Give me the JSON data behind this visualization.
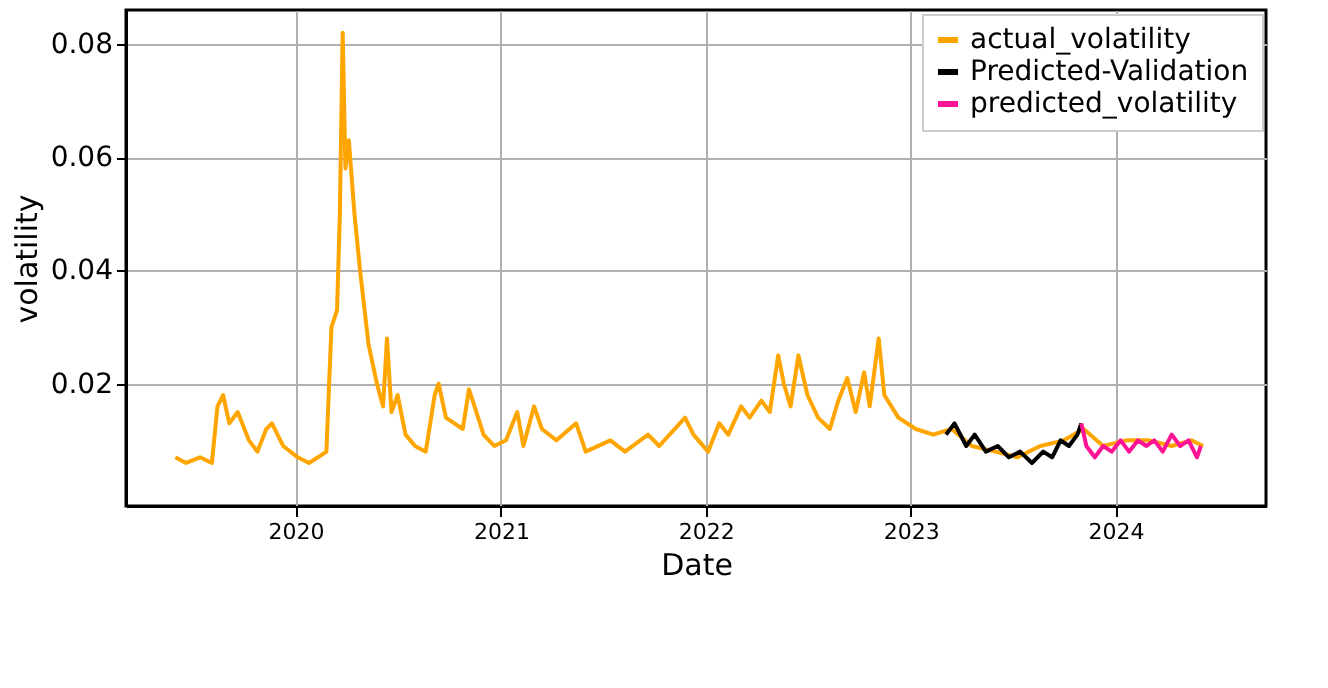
{
  "chart_data": {
    "type": "line",
    "xlabel": "Date",
    "ylabel": "volatility",
    "xlim": [
      "2019-03-05",
      "2024-09-25"
    ],
    "ylim": [
      -0.0016,
      0.086
    ],
    "xticks": [
      {
        "value": "2020-01-01",
        "label": "2020"
      },
      {
        "value": "2021-01-01",
        "label": "2021"
      },
      {
        "value": "2022-01-01",
        "label": "2022"
      },
      {
        "value": "2023-01-01",
        "label": "2023"
      },
      {
        "value": "2024-01-01",
        "label": "2024"
      }
    ],
    "yticks": [
      0.02,
      0.04,
      0.06,
      0.08
    ],
    "grid": true,
    "legend": "top right",
    "marker": "none",
    "line_style": "solid",
    "series": [
      {
        "name": "actual_volatility",
        "color": "#ffa500",
        "x": [
          "2019-06-01",
          "2019-06-20",
          "2019-07-15",
          "2019-08-05",
          "2019-08-15",
          "2019-08-25",
          "2019-09-05",
          "2019-09-20",
          "2019-10-10",
          "2019-10-25",
          "2019-11-10",
          "2019-11-20",
          "2019-12-10",
          "2020-01-05",
          "2020-01-25",
          "2020-02-10",
          "2020-02-25",
          "2020-03-05",
          "2020-03-15",
          "2020-03-20",
          "2020-03-25",
          "2020-03-30",
          "2020-04-05",
          "2020-04-15",
          "2020-04-25",
          "2020-05-10",
          "2020-05-25",
          "2020-06-05",
          "2020-06-12",
          "2020-06-20",
          "2020-07-01",
          "2020-07-15",
          "2020-08-01",
          "2020-08-20",
          "2020-09-05",
          "2020-09-12",
          "2020-09-25",
          "2020-10-10",
          "2020-10-25",
          "2020-11-05",
          "2020-11-15",
          "2020-12-01",
          "2020-12-20",
          "2021-01-10",
          "2021-01-30",
          "2021-02-10",
          "2021-03-01",
          "2021-03-15",
          "2021-04-10",
          "2021-05-15",
          "2021-06-01",
          "2021-07-15",
          "2021-08-10",
          "2021-09-20",
          "2021-10-10",
          "2021-11-25",
          "2021-12-10",
          "2022-01-05",
          "2022-01-25",
          "2022-02-10",
          "2022-03-05",
          "2022-03-20",
          "2022-04-10",
          "2022-04-25",
          "2022-05-10",
          "2022-05-20",
          "2022-06-01",
          "2022-06-15",
          "2022-07-01",
          "2022-07-20",
          "2022-08-10",
          "2022-08-25",
          "2022-09-10",
          "2022-09-25",
          "2022-10-10",
          "2022-10-20",
          "2022-11-05",
          "2022-11-15",
          "2022-12-10",
          "2023-01-10",
          "2023-02-10",
          "2023-03-15",
          "2023-04-20",
          "2023-06-01",
          "2023-07-10",
          "2023-08-20",
          "2023-10-01",
          "2023-11-05",
          "2023-12-10",
          "2024-01-20",
          "2024-03-01",
          "2024-04-10",
          "2024-05-15",
          "2024-06-05"
        ],
        "values": [
          0.007,
          0.006,
          0.007,
          0.006,
          0.016,
          0.018,
          0.013,
          0.015,
          0.01,
          0.008,
          0.012,
          0.013,
          0.009,
          0.007,
          0.006,
          0.007,
          0.008,
          0.03,
          0.033,
          0.05,
          0.082,
          0.058,
          0.063,
          0.05,
          0.04,
          0.027,
          0.02,
          0.016,
          0.028,
          0.015,
          0.018,
          0.011,
          0.009,
          0.008,
          0.018,
          0.02,
          0.014,
          0.013,
          0.012,
          0.019,
          0.016,
          0.011,
          0.009,
          0.01,
          0.015,
          0.009,
          0.016,
          0.012,
          0.01,
          0.013,
          0.008,
          0.01,
          0.008,
          0.011,
          0.009,
          0.014,
          0.011,
          0.008,
          0.013,
          0.011,
          0.016,
          0.014,
          0.017,
          0.015,
          0.025,
          0.02,
          0.016,
          0.025,
          0.018,
          0.014,
          0.012,
          0.017,
          0.021,
          0.015,
          0.022,
          0.016,
          0.028,
          0.018,
          0.014,
          0.012,
          0.011,
          0.012,
          0.009,
          0.008,
          0.007,
          0.009,
          0.01,
          0.012,
          0.009,
          0.01,
          0.01,
          0.009,
          0.01,
          0.009
        ]
      },
      {
        "name": "Predicted-Validation",
        "color": "#000000",
        "x": [
          "2023-03-05",
          "2023-03-20",
          "2023-04-10",
          "2023-04-25",
          "2023-05-15",
          "2023-06-05",
          "2023-06-25",
          "2023-07-15",
          "2023-08-05",
          "2023-08-25",
          "2023-09-10",
          "2023-09-25",
          "2023-10-10",
          "2023-10-25",
          "2023-11-01"
        ],
        "values": [
          0.011,
          0.013,
          0.009,
          0.011,
          0.008,
          0.009,
          0.007,
          0.008,
          0.006,
          0.008,
          0.007,
          0.01,
          0.009,
          0.011,
          0.013
        ]
      },
      {
        "name": "predicted_volatility",
        "color": "#ff1493",
        "x": [
          "2023-11-01",
          "2023-11-10",
          "2023-11-25",
          "2023-12-10",
          "2023-12-25",
          "2024-01-10",
          "2024-01-25",
          "2024-02-10",
          "2024-02-25",
          "2024-03-10",
          "2024-03-25",
          "2024-04-10",
          "2024-04-25",
          "2024-05-10",
          "2024-05-25",
          "2024-06-01"
        ],
        "values": [
          0.013,
          0.009,
          0.007,
          0.009,
          0.008,
          0.01,
          0.008,
          0.01,
          0.009,
          0.01,
          0.008,
          0.011,
          0.009,
          0.01,
          0.007,
          0.009
        ]
      }
    ]
  }
}
